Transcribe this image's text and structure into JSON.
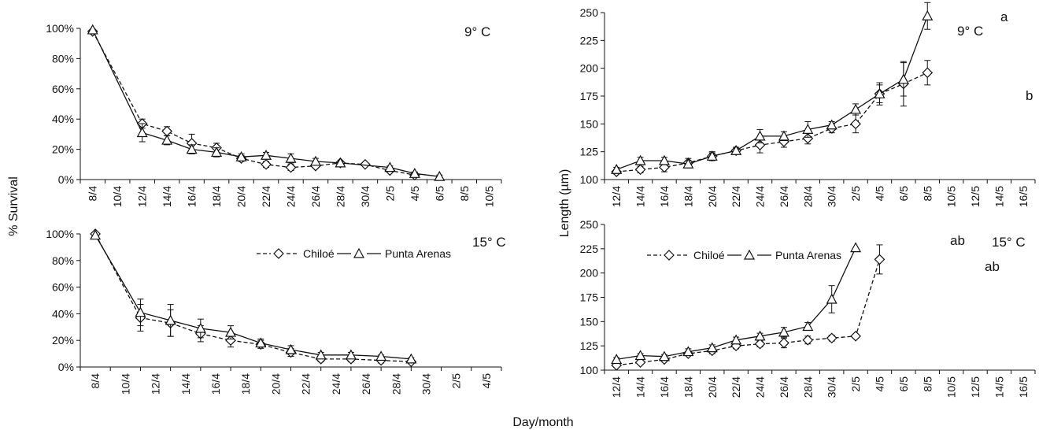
{
  "figure": {
    "ylabel_survival": "% Survival",
    "ylabel_length": "Length (µm)",
    "xlabel": "Day/month"
  },
  "legend": {
    "chiloe": "Chiloé",
    "punta_arenas": "Punta Arenas"
  },
  "colors": {
    "line": "#111111",
    "marker_fill": "#ffffff"
  },
  "chart_data": [
    {
      "id": "survival_9",
      "type": "line",
      "temp_label": "9° C",
      "categories": [
        "8/4",
        "10/4",
        "12/4",
        "14/4",
        "16/4",
        "18/4",
        "20/4",
        "22/4",
        "24/4",
        "26/4",
        "28/4",
        "30/4",
        "2/5",
        "4/5",
        "6/5",
        "8/5",
        "10/5"
      ],
      "yticks": [
        "0%",
        "20%",
        "40%",
        "60%",
        "80%",
        "100%"
      ],
      "ylim": [
        0,
        100
      ],
      "legend": false,
      "series": [
        {
          "name": "Chiloé",
          "marker": "diamond",
          "dash": true,
          "points": [
            [
              0,
              98
            ],
            [
              2,
              37
            ],
            [
              3,
              32
            ],
            [
              4,
              24
            ],
            [
              5,
              21
            ],
            [
              6,
              14
            ],
            [
              7,
              10
            ],
            [
              8,
              8
            ],
            [
              9,
              9
            ],
            [
              10,
              11
            ],
            [
              11,
              10
            ],
            [
              12,
              6
            ],
            [
              13,
              3
            ]
          ],
          "err": [
            0,
            3,
            3,
            6,
            3,
            2,
            2,
            2,
            1,
            1,
            1,
            1,
            1
          ]
        },
        {
          "name": "Punta Arenas",
          "marker": "triangle",
          "dash": false,
          "points": [
            [
              0,
              99
            ],
            [
              2,
              31
            ],
            [
              3,
              26
            ],
            [
              4,
              20
            ],
            [
              5,
              18
            ],
            [
              6,
              15
            ],
            [
              7,
              16
            ],
            [
              8,
              14
            ],
            [
              9,
              12
            ],
            [
              10,
              11
            ],
            [
              12,
              8
            ],
            [
              13,
              4
            ],
            [
              14,
              2
            ]
          ],
          "err": [
            0,
            6,
            3,
            3,
            3,
            2,
            2,
            3,
            2,
            1,
            1,
            1,
            1
          ]
        }
      ],
      "annotations": []
    },
    {
      "id": "survival_15",
      "type": "line",
      "temp_label": "15° C",
      "categories": [
        "8/4",
        "10/4",
        "12/4",
        "14/4",
        "16/4",
        "18/4",
        "20/4",
        "22/4",
        "24/4",
        "26/4",
        "28/4",
        "30/4",
        "2/5",
        "4/5"
      ],
      "yticks": [
        "0%",
        "20%",
        "40%",
        "60%",
        "80%",
        "100%"
      ],
      "ylim": [
        0,
        100
      ],
      "legend": true,
      "series": [
        {
          "name": "Chiloé",
          "marker": "diamond",
          "dash": true,
          "points": [
            [
              0,
              100
            ],
            [
              1.5,
              37
            ],
            [
              2.5,
              33
            ],
            [
              3.5,
              25
            ],
            [
              4.5,
              20
            ],
            [
              5.5,
              17
            ],
            [
              6.5,
              11
            ],
            [
              7.5,
              6
            ],
            [
              8.5,
              6
            ],
            [
              9.5,
              5
            ],
            [
              10.5,
              4
            ]
          ],
          "err": [
            0,
            10,
            10,
            6,
            5,
            3,
            3,
            2,
            2,
            2,
            1
          ]
        },
        {
          "name": "Punta Arenas",
          "marker": "triangle",
          "dash": false,
          "points": [
            [
              0,
              99
            ],
            [
              1.5,
              41
            ],
            [
              2.5,
              35
            ],
            [
              3.5,
              29
            ],
            [
              4.5,
              26
            ],
            [
              5.5,
              18
            ],
            [
              6.5,
              13
            ],
            [
              7.5,
              9
            ],
            [
              8.5,
              9
            ],
            [
              9.5,
              8
            ],
            [
              10.5,
              6
            ]
          ],
          "err": [
            0,
            10,
            12,
            7,
            5,
            3,
            3,
            2,
            2,
            1,
            1
          ]
        }
      ],
      "annotations": []
    },
    {
      "id": "length_9",
      "type": "line",
      "temp_label": "9° C",
      "categories": [
        "12/4",
        "14/4",
        "16/4",
        "18/4",
        "20/4",
        "22/4",
        "24/4",
        "26/4",
        "28/4",
        "30/4",
        "2/5",
        "4/5",
        "6/5",
        "8/5",
        "10/5",
        "12/5",
        "14/5",
        "16/5"
      ],
      "yticks": [
        "100",
        "125",
        "150",
        "175",
        "200",
        "225",
        "250"
      ],
      "ylim": [
        100,
        250
      ],
      "legend": false,
      "series": [
        {
          "name": "Chiloé",
          "marker": "diamond",
          "dash": true,
          "points": [
            [
              0,
              107
            ],
            [
              1,
              109
            ],
            [
              2,
              111
            ],
            [
              3,
              115
            ],
            [
              4,
              121
            ],
            [
              5,
              126
            ],
            [
              6,
              131
            ],
            [
              7,
              134
            ],
            [
              8,
              137
            ],
            [
              9,
              146
            ],
            [
              10,
              150
            ],
            [
              11,
              177
            ],
            [
              12,
              186
            ],
            [
              13,
              196
            ]
          ],
          "err": [
            2,
            3,
            4,
            4,
            4,
            3,
            7,
            5,
            5,
            4,
            8,
            10,
            20,
            11
          ]
        },
        {
          "name": "Punta Arenas",
          "marker": "triangle",
          "dash": false,
          "points": [
            [
              0,
              109
            ],
            [
              1,
              117
            ],
            [
              2,
              117
            ],
            [
              3,
              114
            ],
            [
              4,
              121
            ],
            [
              5,
              126
            ],
            [
              6,
              139
            ],
            [
              7,
              139
            ],
            [
              8,
              145
            ],
            [
              9,
              149
            ],
            [
              10,
              163
            ],
            [
              11,
              177
            ],
            [
              12,
              190
            ],
            [
              13,
              247
            ]
          ],
          "err": [
            2,
            3,
            3,
            3,
            3,
            3,
            6,
            4,
            7,
            3,
            5,
            8,
            15,
            12
          ]
        }
      ],
      "annotations": [
        "a",
        "b"
      ]
    },
    {
      "id": "length_15",
      "type": "line",
      "temp_label": "15° C",
      "categories": [
        "12/4",
        "14/4",
        "16/4",
        "18/4",
        "20/4",
        "22/4",
        "24/4",
        "26/4",
        "28/4",
        "30/4",
        "2/5",
        "4/5",
        "6/5",
        "8/5",
        "10/5",
        "12/5",
        "14/5",
        "16/5"
      ],
      "yticks": [
        "100",
        "125",
        "150",
        "175",
        "200",
        "225",
        "250"
      ],
      "ylim": [
        100,
        250
      ],
      "legend": true,
      "series": [
        {
          "name": "Chiloé",
          "marker": "diamond",
          "dash": true,
          "points": [
            [
              0,
              105
            ],
            [
              1,
              108
            ],
            [
              2,
              111
            ],
            [
              3,
              117
            ],
            [
              4,
              120
            ],
            [
              5,
              125
            ],
            [
              6,
              127
            ],
            [
              7,
              128
            ],
            [
              8,
              131
            ],
            [
              9,
              133
            ],
            [
              10,
              135
            ],
            [
              11,
              214
            ]
          ],
          "err": [
            2,
            2,
            2,
            2,
            3,
            3,
            3,
            5,
            4,
            3,
            2,
            15
          ]
        },
        {
          "name": "Punta Arenas",
          "marker": "triangle",
          "dash": false,
          "points": [
            [
              0,
              111
            ],
            [
              1,
              115
            ],
            [
              2,
              114
            ],
            [
              3,
              119
            ],
            [
              4,
              123
            ],
            [
              5,
              131
            ],
            [
              6,
              135
            ],
            [
              7,
              139
            ],
            [
              8,
              145
            ],
            [
              9,
              173
            ],
            [
              10,
              226
            ]
          ],
          "err": [
            2,
            2,
            2,
            3,
            3,
            3,
            3,
            5,
            4,
            14,
            0
          ]
        }
      ],
      "annotations": [
        "ab",
        "ab"
      ]
    }
  ]
}
